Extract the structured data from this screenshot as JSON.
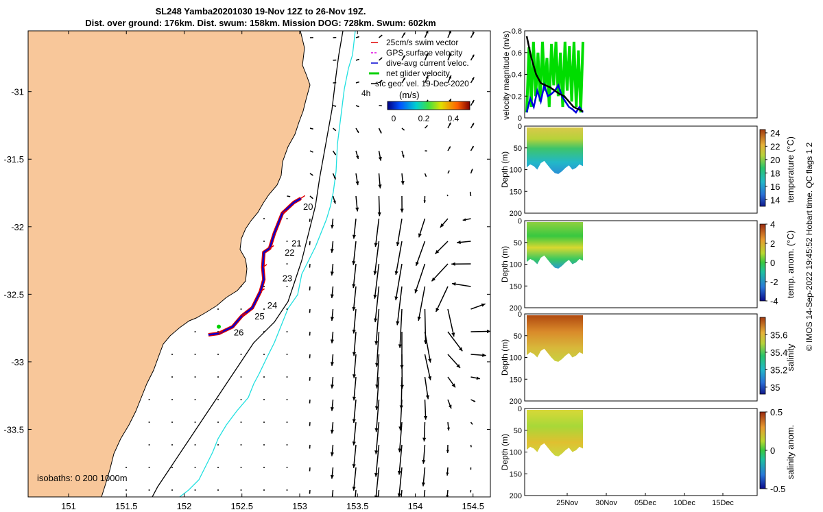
{
  "title": {
    "line1": "SL248 Yamba20201030 19-Nov 12Z to 26-Nov 19Z.",
    "line2": "Dist. over ground: 176km. Dist. swum: 158km. Mission DOG: 728km. Swum: 602km"
  },
  "credit": "© IMOS 14-Sep-2022 19:45:52 Hobart time. QC flags 1  2",
  "chart_data": [
    {
      "type": "map",
      "xlim": [
        150.65,
        154.65
      ],
      "ylim": [
        -34.0,
        -30.55
      ],
      "xticks": [
        151,
        151.5,
        152,
        152.5,
        153,
        153.5,
        154,
        154.5
      ],
      "xtick_labels": [
        "151",
        "151.5",
        "152",
        "152.5",
        "153",
        "153.5",
        "154",
        "154.5"
      ],
      "yticks": [
        -31,
        -31.5,
        -32,
        -32.5,
        -33,
        -33.5
      ],
      "ytick_labels": [
        "-31",
        "-31.5",
        "-32",
        "-32.5",
        "-33",
        "-33.5"
      ],
      "legend": [
        {
          "label": "25cm/s swim vector",
          "color": "#e00000"
        },
        {
          "label": "GPS surface velocity",
          "color": "#e000e0"
        },
        {
          "label": "dive-avg current veloc.",
          "color": "#0000d0"
        },
        {
          "label": "net glider velocity",
          "color": "#00d000"
        },
        {
          "label": "sfc geo. vel. 19-Dec-2020",
          "color": "#000000"
        }
      ],
      "legend_extra": "4h",
      "colorbar": {
        "label": "(m/s)",
        "ticks": [
          "0",
          "0.2",
          "0.4"
        ],
        "range": [
          0,
          0.5
        ]
      },
      "isobath_label": "isobaths: 0 200  1000m",
      "day_labels": [
        {
          "label": "20",
          "lon": 153.03,
          "lat": -31.85
        },
        {
          "label": "21",
          "lon": 152.93,
          "lat": -32.12
        },
        {
          "label": "22",
          "lon": 152.87,
          "lat": -32.19
        },
        {
          "label": "23",
          "lon": 152.85,
          "lat": -32.38
        },
        {
          "label": "24",
          "lon": 152.72,
          "lat": -32.58
        },
        {
          "label": "25",
          "lon": 152.61,
          "lat": -32.66
        },
        {
          "label": "26",
          "lon": 152.43,
          "lat": -32.78
        }
      ],
      "track": [
        [
          153.01,
          -31.79
        ],
        [
          152.95,
          -31.82
        ],
        [
          152.85,
          -31.9
        ],
        [
          152.78,
          -32.05
        ],
        [
          152.74,
          -32.16
        ],
        [
          152.69,
          -32.19
        ],
        [
          152.68,
          -32.3
        ],
        [
          152.69,
          -32.39
        ],
        [
          152.66,
          -32.48
        ],
        [
          152.59,
          -32.6
        ],
        [
          152.5,
          -32.66
        ],
        [
          152.42,
          -32.74
        ],
        [
          152.3,
          -32.79
        ],
        [
          152.21,
          -32.8
        ]
      ]
    },
    {
      "type": "line",
      "ylabel": "velocity magnitude (m/s)",
      "ylim": [
        0,
        0.8
      ],
      "yticks": [
        0,
        0.2,
        0.4,
        0.6,
        0.8
      ],
      "ytick_labels": [
        "0",
        "0.2",
        "0.4",
        "0.6",
        "0.8"
      ],
      "series": [
        {
          "name": "net glider velocity",
          "color": "#00dd00",
          "values": [
            0.05,
            0.65,
            0.1,
            0.7,
            0.2,
            0.6,
            0.15,
            0.7,
            0.25,
            0.55,
            0.1,
            0.68,
            0.3,
            0.7,
            0.2,
            0.6,
            0.1,
            0.7,
            0.25,
            0.66,
            0.15,
            0.7,
            0.1,
            0.62,
            0.05,
            0.7
          ]
        },
        {
          "name": "dive-avg current veloc.",
          "color": "#0000dd",
          "values": [
            0.05,
            0.18,
            0.1,
            0.25,
            0.15,
            0.3,
            0.2,
            0.22,
            0.25,
            0.3,
            0.2,
            0.15,
            0.1,
            0.08,
            0.05,
            0.1,
            0.05
          ]
        },
        {
          "name": "sfc geo. vel.",
          "color": "#000000",
          "values": [
            0.75,
            0.55,
            0.4,
            0.32,
            0.3,
            0.28,
            0.25,
            0.22,
            0.2,
            0.15,
            0.1,
            0.08,
            0.06
          ]
        }
      ]
    },
    {
      "type": "heatmap",
      "ylabel": "Depth (m)",
      "ylim": [
        200,
        0
      ],
      "yticks": [
        0,
        50,
        100,
        150,
        200
      ],
      "cbar_label": "temperature (°C)",
      "cbar_ticks": [
        "24",
        "22",
        "20",
        "18",
        "16",
        "14"
      ],
      "cbar_range": [
        13,
        24.5
      ]
    },
    {
      "type": "heatmap",
      "ylabel": "Depth (m)",
      "ylim": [
        200,
        0
      ],
      "yticks": [
        0,
        50,
        100,
        150,
        200
      ],
      "cbar_label": "temp. anom. (°C)",
      "cbar_ticks": [
        "4",
        "2",
        "0",
        "-2",
        "-4"
      ],
      "cbar_range": [
        -4,
        4
      ]
    },
    {
      "type": "heatmap",
      "ylabel": "Depth (m)",
      "ylim": [
        200,
        0
      ],
      "yticks": [
        0,
        50,
        100,
        150,
        200
      ],
      "cbar_label": "salinity",
      "cbar_ticks": [
        "35.6",
        "35.4",
        "35.2",
        "35"
      ],
      "cbar_range": [
        34.92,
        35.8
      ]
    },
    {
      "type": "heatmap",
      "ylabel": "Depth (m)",
      "ylim": [
        200,
        0
      ],
      "yticks": [
        0,
        50,
        100,
        150,
        200
      ],
      "cbar_label": "salinity anom.",
      "cbar_ticks": [
        "0.5",
        "0",
        "-0.5"
      ],
      "cbar_range": [
        -0.5,
        0.5
      ],
      "xtick_labels": [
        "25Nov",
        "30Nov",
        "05Dec",
        "10Dec",
        "15Dec"
      ]
    }
  ]
}
